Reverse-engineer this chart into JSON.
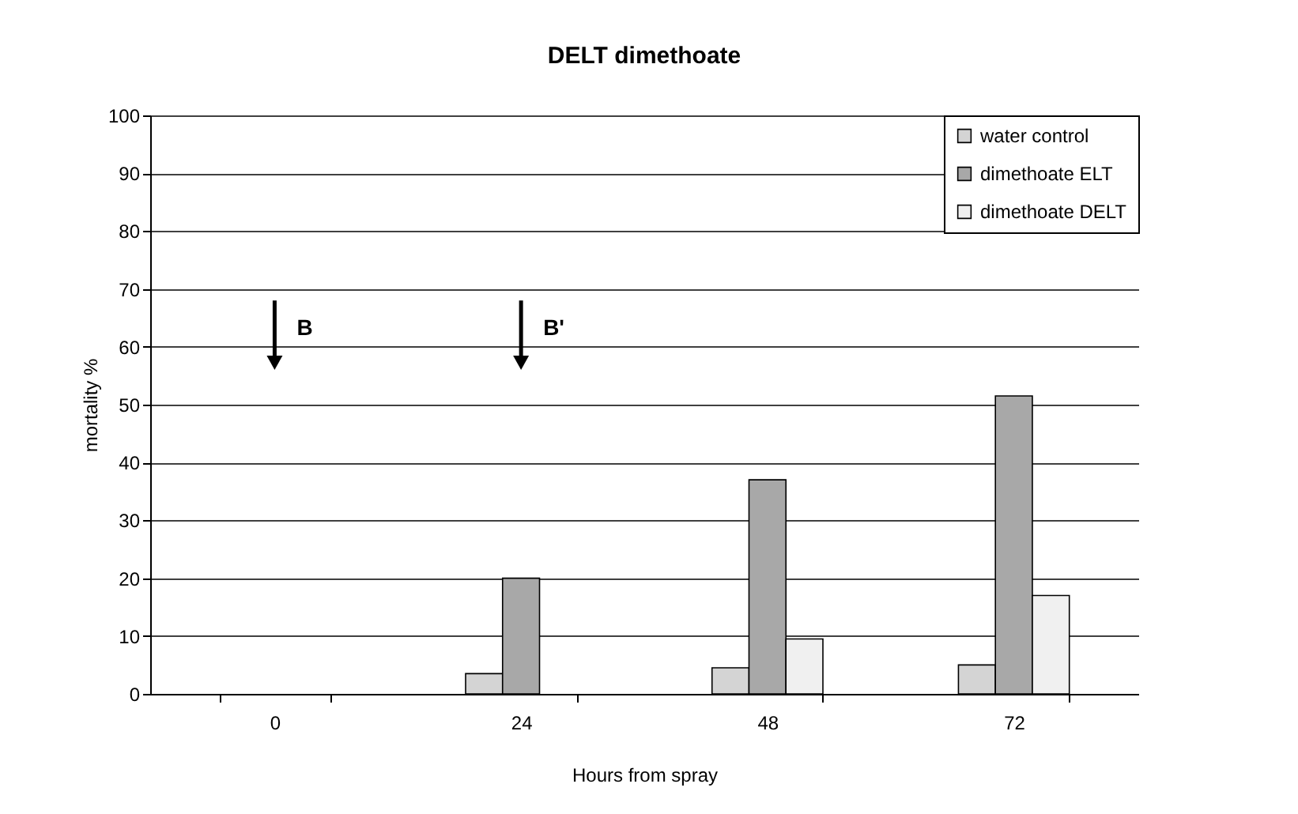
{
  "chart_data": {
    "type": "bar",
    "title": "DELT dimethoate",
    "xlabel": "Hours from spray",
    "ylabel": "mortality %",
    "categories": [
      "0",
      "24",
      "48",
      "72"
    ],
    "series": [
      {
        "name": "water control",
        "color": "#d4d4d4",
        "values": [
          null,
          3.5,
          4.5,
          5
        ]
      },
      {
        "name": "dimethoate ELT",
        "color": "#a8a8a8",
        "values": [
          null,
          20,
          37,
          51.5
        ]
      },
      {
        "name": "dimethoate DELT",
        "color": "#f0f0f0",
        "values": [
          null,
          null,
          9.5,
          17
        ]
      }
    ],
    "ylim": [
      0,
      100
    ],
    "yticks": [
      0,
      10,
      20,
      30,
      40,
      50,
      60,
      70,
      80,
      90,
      100
    ],
    "grid": "y",
    "legend": "top right",
    "annotations": [
      "B",
      "B'"
    ]
  }
}
